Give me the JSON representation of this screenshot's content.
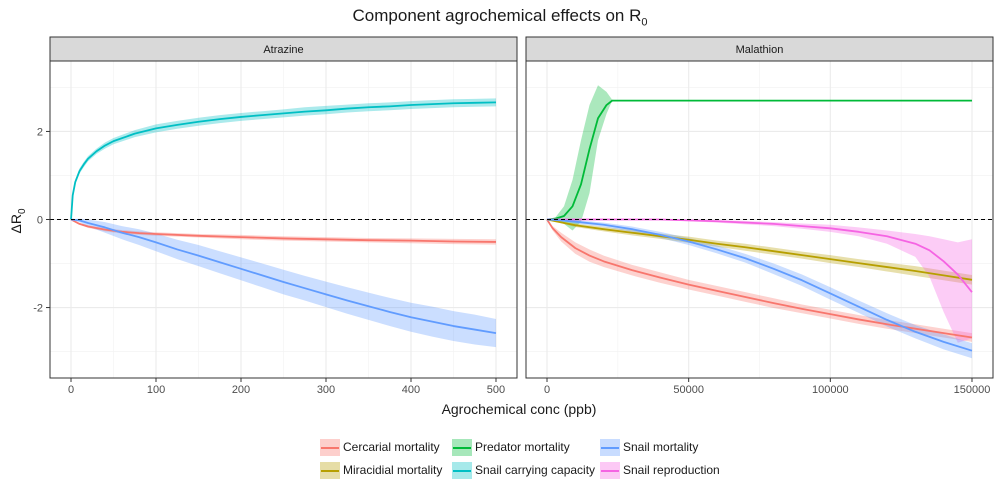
{
  "title_main": "Component agrochemical effects on R",
  "title_sub": "0",
  "xlabel": "Agrochemical conc (ppb)",
  "ylabel_main": "ΔR",
  "ylabel_sub": "0",
  "colors": {
    "Cercarial mortality": "#F8766D",
    "Miracidial mortality": "#B79F00",
    "Predator mortality": "#00BA38",
    "Snail carrying capacity": "#00BFC4",
    "Snail mortality": "#619CFF",
    "Snail reproduction": "#F564E3"
  },
  "legend": [
    "Cercarial mortality",
    "Miracidial mortality",
    "Predator mortality",
    "Snail carrying capacity",
    "Snail mortality",
    "Snail reproduction"
  ],
  "chart_data": [
    {
      "type": "line",
      "panel": "Atrazine",
      "xlim": [
        0,
        500
      ],
      "ylim": [
        -3.6,
        3.6
      ],
      "x_ticks": [
        0,
        100,
        200,
        300,
        400,
        500
      ],
      "x_tick_labels": [
        "0",
        "100",
        "200",
        "300",
        "400",
        "500"
      ],
      "y_ticks": [
        -2,
        0,
        2
      ],
      "y_tick_labels": [
        "-2",
        "0",
        "2"
      ],
      "hline": 0,
      "grid": true,
      "series": [
        {
          "name": "Snail carrying capacity",
          "x": [
            0,
            2,
            5,
            10,
            15,
            20,
            30,
            40,
            50,
            75,
            100,
            125,
            150,
            175,
            200,
            225,
            250,
            275,
            300,
            325,
            350,
            375,
            400,
            425,
            450,
            475,
            500
          ],
          "y": [
            0,
            0.55,
            0.85,
            1.1,
            1.25,
            1.38,
            1.55,
            1.68,
            1.78,
            1.95,
            2.07,
            2.15,
            2.22,
            2.28,
            2.33,
            2.37,
            2.41,
            2.45,
            2.48,
            2.52,
            2.55,
            2.57,
            2.6,
            2.62,
            2.64,
            2.65,
            2.66
          ],
          "lower": [
            0,
            0.5,
            0.8,
            1.04,
            1.19,
            1.32,
            1.49,
            1.61,
            1.71,
            1.87,
            1.98,
            2.06,
            2.13,
            2.19,
            2.24,
            2.28,
            2.32,
            2.36,
            2.39,
            2.43,
            2.46,
            2.48,
            2.51,
            2.53,
            2.55,
            2.56,
            2.57
          ],
          "upper": [
            0,
            0.6,
            0.9,
            1.16,
            1.31,
            1.44,
            1.61,
            1.75,
            1.85,
            2.03,
            2.16,
            2.24,
            2.31,
            2.37,
            2.42,
            2.46,
            2.5,
            2.55,
            2.58,
            2.61,
            2.64,
            2.66,
            2.69,
            2.71,
            2.73,
            2.74,
            2.75
          ]
        },
        {
          "name": "Cercarial mortality",
          "x": [
            0,
            10,
            20,
            40,
            60,
            80,
            100,
            150,
            200,
            250,
            300,
            350,
            400,
            450,
            500
          ],
          "y": [
            0,
            -0.1,
            -0.16,
            -0.23,
            -0.28,
            -0.31,
            -0.33,
            -0.37,
            -0.4,
            -0.43,
            -0.45,
            -0.47,
            -0.48,
            -0.5,
            -0.51
          ],
          "lower": [
            0,
            -0.12,
            -0.19,
            -0.27,
            -0.32,
            -0.35,
            -0.37,
            -0.41,
            -0.45,
            -0.48,
            -0.5,
            -0.52,
            -0.54,
            -0.56,
            -0.57
          ],
          "upper": [
            0,
            -0.08,
            -0.13,
            -0.19,
            -0.24,
            -0.27,
            -0.29,
            -0.33,
            -0.35,
            -0.38,
            -0.4,
            -0.42,
            -0.43,
            -0.44,
            -0.45
          ]
        },
        {
          "name": "Snail mortality",
          "x": [
            0,
            10,
            20,
            40,
            60,
            80,
            100,
            125,
            150,
            175,
            200,
            225,
            250,
            275,
            300,
            325,
            350,
            375,
            400,
            425,
            450,
            475,
            500
          ],
          "y": [
            0,
            -0.02,
            -0.08,
            -0.18,
            -0.3,
            -0.4,
            -0.52,
            -0.68,
            -0.82,
            -0.97,
            -1.12,
            -1.27,
            -1.42,
            -1.56,
            -1.7,
            -1.84,
            -1.97,
            -2.1,
            -2.22,
            -2.32,
            -2.42,
            -2.5,
            -2.58
          ],
          "lower": [
            0,
            -0.06,
            -0.16,
            -0.3,
            -0.45,
            -0.58,
            -0.72,
            -0.9,
            -1.06,
            -1.22,
            -1.38,
            -1.54,
            -1.7,
            -1.84,
            -1.99,
            -2.14,
            -2.28,
            -2.42,
            -2.55,
            -2.66,
            -2.76,
            -2.84,
            -2.9
          ],
          "upper": [
            0,
            0.02,
            0.0,
            -0.06,
            -0.15,
            -0.22,
            -0.32,
            -0.46,
            -0.58,
            -0.72,
            -0.86,
            -1.0,
            -1.14,
            -1.28,
            -1.41,
            -1.54,
            -1.66,
            -1.78,
            -1.89,
            -1.98,
            -2.08,
            -2.16,
            -2.26
          ]
        }
      ]
    },
    {
      "type": "line",
      "panel": "Malathion",
      "xlim": [
        0,
        150000
      ],
      "ylim": [
        -3.6,
        3.6
      ],
      "x_ticks": [
        0,
        50000,
        100000,
        150000
      ],
      "x_tick_labels": [
        "0",
        "50000",
        "100000",
        "150000"
      ],
      "y_ticks": [
        -2,
        0,
        2
      ],
      "y_tick_labels": [
        "-2",
        "0",
        "2"
      ],
      "hline": 0,
      "grid": true,
      "series": [
        {
          "name": "Predator mortality",
          "x": [
            0,
            3000,
            6000,
            9000,
            12000,
            15000,
            18000,
            21000,
            23000,
            25000,
            30000,
            60000,
            100000,
            150000
          ],
          "y": [
            0,
            0.02,
            0.08,
            0.3,
            0.8,
            1.6,
            2.3,
            2.6,
            2.7,
            2.7,
            2.7,
            2.7,
            2.7,
            2.7
          ],
          "lower": [
            0,
            0.0,
            -0.1,
            -0.25,
            -0.05,
            0.6,
            1.8,
            2.4,
            2.7,
            2.7,
            2.7,
            2.7,
            2.7,
            2.7
          ],
          "upper": [
            0,
            0.05,
            0.3,
            0.9,
            1.8,
            2.6,
            3.05,
            2.9,
            2.72,
            2.7,
            2.7,
            2.7,
            2.7,
            2.7
          ]
        },
        {
          "name": "Cercarial mortality",
          "x": [
            0,
            2000,
            5000,
            10000,
            15000,
            20000,
            30000,
            40000,
            50000,
            60000,
            70000,
            80000,
            90000,
            100000,
            110000,
            120000,
            130000,
            140000,
            150000
          ],
          "y": [
            0,
            -0.2,
            -0.4,
            -0.65,
            -0.82,
            -0.95,
            -1.15,
            -1.32,
            -1.48,
            -1.62,
            -1.76,
            -1.9,
            -2.03,
            -2.15,
            -2.27,
            -2.38,
            -2.48,
            -2.58,
            -2.68
          ],
          "lower": [
            0,
            -0.25,
            -0.5,
            -0.78,
            -0.96,
            -1.08,
            -1.27,
            -1.44,
            -1.59,
            -1.73,
            -1.87,
            -2.01,
            -2.13,
            -2.25,
            -2.37,
            -2.48,
            -2.58,
            -2.68,
            -2.78
          ],
          "upper": [
            0,
            -0.15,
            -0.3,
            -0.52,
            -0.68,
            -0.82,
            -1.03,
            -1.2,
            -1.37,
            -1.51,
            -1.65,
            -1.79,
            -1.93,
            -2.05,
            -2.17,
            -2.28,
            -2.38,
            -2.48,
            -2.58
          ]
        },
        {
          "name": "Miracidial mortality",
          "x": [
            0,
            10000,
            20000,
            30000,
            40000,
            50000,
            60000,
            70000,
            80000,
            90000,
            100000,
            110000,
            120000,
            130000,
            140000,
            150000
          ],
          "y": [
            0,
            -0.13,
            -0.22,
            -0.3,
            -0.38,
            -0.46,
            -0.55,
            -0.63,
            -0.72,
            -0.81,
            -0.9,
            -0.99,
            -1.08,
            -1.17,
            -1.27,
            -1.37
          ],
          "lower": [
            0,
            -0.17,
            -0.27,
            -0.36,
            -0.44,
            -0.53,
            -0.62,
            -0.71,
            -0.8,
            -0.89,
            -0.99,
            -1.08,
            -1.18,
            -1.28,
            -1.38,
            -1.48
          ],
          "upper": [
            0,
            -0.09,
            -0.17,
            -0.24,
            -0.32,
            -0.39,
            -0.48,
            -0.55,
            -0.64,
            -0.73,
            -0.81,
            -0.9,
            -0.98,
            -1.06,
            -1.16,
            -1.26
          ]
        },
        {
          "name": "Snail reproduction",
          "x": [
            0,
            10000,
            20000,
            30000,
            40000,
            50000,
            60000,
            70000,
            80000,
            90000,
            100000,
            110000,
            120000,
            130000,
            135000,
            140000,
            145000,
            150000
          ],
          "y": [
            0,
            0.0,
            0.0,
            0.0,
            0.0,
            -0.02,
            -0.04,
            -0.07,
            -0.1,
            -0.15,
            -0.2,
            -0.28,
            -0.38,
            -0.55,
            -0.7,
            -0.95,
            -1.25,
            -1.65
          ],
          "lower": [
            0,
            0.0,
            0.0,
            0.0,
            -0.01,
            -0.04,
            -0.07,
            -0.11,
            -0.15,
            -0.21,
            -0.28,
            -0.38,
            -0.55,
            -0.85,
            -1.3,
            -2.1,
            -2.8,
            -2.7
          ],
          "upper": [
            0,
            0.02,
            0.02,
            0.02,
            0.01,
            0.0,
            -0.01,
            -0.03,
            -0.06,
            -0.09,
            -0.12,
            -0.18,
            -0.25,
            -0.33,
            -0.38,
            -0.45,
            -0.52,
            -0.45
          ]
        },
        {
          "name": "Snail mortality",
          "x": [
            0,
            5000,
            10000,
            20000,
            30000,
            40000,
            50000,
            60000,
            70000,
            80000,
            90000,
            100000,
            110000,
            120000,
            130000,
            140000,
            150000
          ],
          "y": [
            0,
            -0.02,
            -0.05,
            -0.12,
            -0.22,
            -0.35,
            -0.5,
            -0.68,
            -0.88,
            -1.12,
            -1.38,
            -1.68,
            -1.98,
            -2.28,
            -2.55,
            -2.78,
            -2.98
          ],
          "lower": [
            0,
            -0.04,
            -0.09,
            -0.17,
            -0.28,
            -0.42,
            -0.58,
            -0.77,
            -0.98,
            -1.24,
            -1.51,
            -1.82,
            -2.12,
            -2.43,
            -2.7,
            -2.95,
            -3.15
          ],
          "upper": [
            0,
            0.0,
            -0.01,
            -0.07,
            -0.16,
            -0.28,
            -0.42,
            -0.59,
            -0.78,
            -1.0,
            -1.25,
            -1.54,
            -1.84,
            -2.13,
            -2.4,
            -2.61,
            -2.81
          ]
        }
      ]
    }
  ]
}
